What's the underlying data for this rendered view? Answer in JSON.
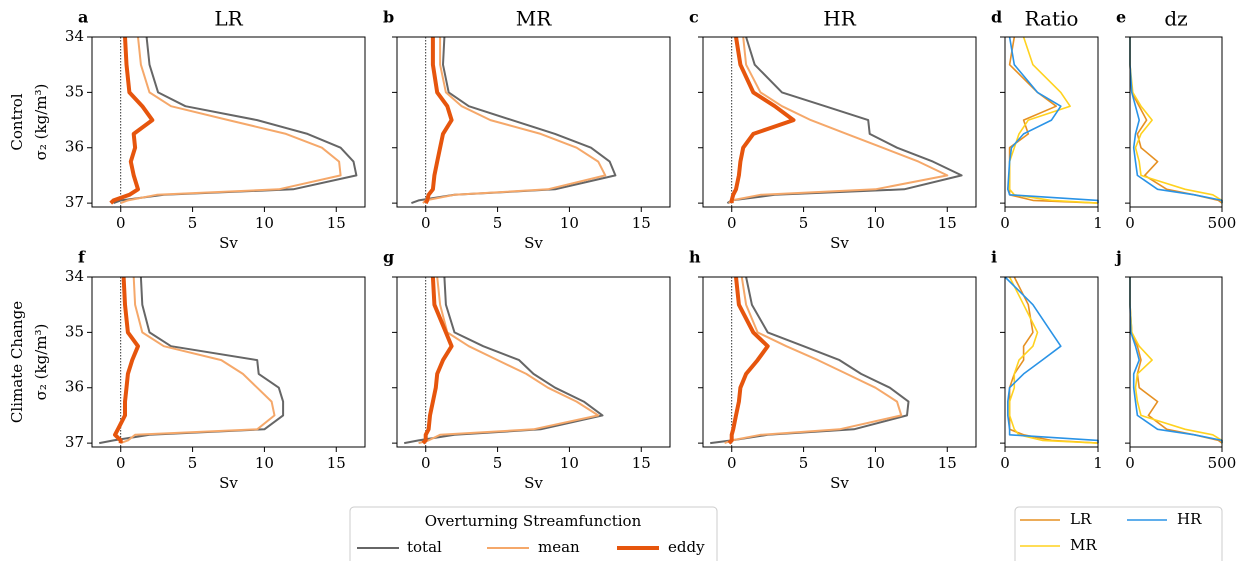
{
  "chart_data": [
    {
      "type": "line",
      "panel_label": "a",
      "title": "LR",
      "row_label": "Control",
      "ylabel": "σ₂ (kg/m³)",
      "xlabel": "Sv",
      "legend_title": "Overturning Streamfunction",
      "xlim": [
        -2,
        17
      ],
      "xticks": [
        0,
        5,
        10,
        15
      ],
      "ylim": [
        34,
        37.07
      ],
      "yticks": [
        34,
        35,
        36,
        37
      ],
      "y_inverted": true,
      "ytick_labels": true,
      "zero_line": true,
      "y": [
        34,
        34.5,
        35,
        35.25,
        35.5,
        35.75,
        36,
        36.25,
        36.5,
        36.75,
        36.85,
        36.95,
        37
      ],
      "series": [
        {
          "name": "total",
          "color": "#666666",
          "linewidth": 2,
          "values": [
            1.8,
            2.0,
            2.6,
            4.5,
            9.5,
            13.0,
            15.3,
            16.2,
            16.4,
            12.0,
            3.0,
            0.0,
            -0.5
          ]
        },
        {
          "name": "mean",
          "color": "#f5a86a",
          "linewidth": 2,
          "values": [
            1.2,
            1.4,
            2.0,
            3.5,
            7.5,
            11.5,
            14.0,
            15.2,
            15.3,
            11.0,
            2.5,
            0.5,
            0.0
          ]
        },
        {
          "name": "eddy",
          "color": "#e6550d",
          "linewidth": 4,
          "values": [
            0.3,
            0.4,
            0.6,
            1.5,
            2.2,
            0.9,
            1.0,
            0.7,
            0.9,
            1.2,
            0.6,
            -0.5,
            -0.7
          ]
        }
      ]
    },
    {
      "type": "line",
      "panel_label": "b",
      "title": "MR",
      "xlabel": "Sv",
      "xlim": [
        -2,
        17
      ],
      "xticks": [
        0,
        5,
        10,
        15
      ],
      "ylim": [
        34,
        37.07
      ],
      "yticks": [
        34,
        35,
        36,
        37
      ],
      "y_inverted": true,
      "ytick_labels": false,
      "zero_line": true,
      "y": [
        34,
        34.5,
        35,
        35.25,
        35.5,
        35.75,
        36,
        36.25,
        36.5,
        36.75,
        36.85,
        36.95,
        37
      ],
      "series": [
        {
          "color": "#666666",
          "linewidth": 2,
          "values": [
            1.3,
            1.2,
            1.6,
            3.0,
            6.0,
            9.0,
            11.5,
            12.8,
            13.2,
            9.0,
            2.0,
            -0.5,
            -1.0
          ]
        },
        {
          "color": "#f5a86a",
          "linewidth": 2,
          "values": [
            1.0,
            1.0,
            1.4,
            2.5,
            4.5,
            8.0,
            10.5,
            12.0,
            12.5,
            8.5,
            2.0,
            0.0,
            -0.2
          ]
        },
        {
          "color": "#e6550d",
          "linewidth": 4,
          "values": [
            0.5,
            0.5,
            0.8,
            1.5,
            1.8,
            1.2,
            1.0,
            0.8,
            0.6,
            0.5,
            0.2,
            0.1,
            0.0
          ]
        }
      ]
    },
    {
      "type": "line",
      "panel_label": "c",
      "title": "HR",
      "xlabel": "Sv",
      "xlim": [
        -2,
        17
      ],
      "xticks": [
        0,
        5,
        10,
        15
      ],
      "ylim": [
        34,
        37.07
      ],
      "yticks": [
        34,
        35,
        36,
        37
      ],
      "y_inverted": true,
      "ytick_labels": false,
      "zero_line": true,
      "y": [
        34,
        34.5,
        35,
        35.25,
        35.5,
        35.75,
        36,
        36.25,
        36.5,
        36.75,
        36.85,
        36.95,
        37
      ],
      "series": [
        {
          "color": "#666666",
          "linewidth": 2,
          "values": [
            1.0,
            1.6,
            3.5,
            6.5,
            9.5,
            9.6,
            11.5,
            14.0,
            16.0,
            12.0,
            3.0,
            0.0,
            -0.3
          ]
        },
        {
          "color": "#f5a86a",
          "linewidth": 2,
          "values": [
            0.8,
            1.0,
            2.0,
            3.5,
            5.5,
            8.0,
            10.5,
            13.0,
            15.0,
            10.0,
            2.0,
            0.0,
            -0.2
          ]
        },
        {
          "color": "#e6550d",
          "linewidth": 4,
          "values": [
            0.3,
            0.6,
            1.5,
            3.0,
            4.3,
            1.5,
            0.8,
            0.6,
            0.5,
            0.3,
            0.1,
            0.0,
            0.0
          ]
        }
      ]
    },
    {
      "type": "line",
      "panel_label": "d",
      "title": "Ratio",
      "xlim": [
        0,
        1
      ],
      "xticks": [
        0,
        1
      ],
      "ylim": [
        34,
        37.07
      ],
      "yticks": [
        34,
        35,
        36,
        37
      ],
      "y_inverted": true,
      "ytick_labels": false,
      "y": [
        34,
        34.5,
        35,
        35.25,
        35.5,
        35.75,
        36,
        36.25,
        36.5,
        36.75,
        36.85,
        36.95,
        37
      ],
      "series": [
        {
          "name": "LR",
          "color": "#e69022",
          "linewidth": 1.6,
          "values": [
            0.1,
            0.05,
            0.35,
            0.55,
            0.2,
            0.25,
            0.05,
            0.05,
            0.05,
            0.05,
            0.05,
            0.3,
            1.0
          ]
        },
        {
          "name": "MR",
          "color": "#ffd21f",
          "linewidth": 1.6,
          "values": [
            0.2,
            0.3,
            0.6,
            0.7,
            0.25,
            0.15,
            0.1,
            0.05,
            0.05,
            0.05,
            0.1,
            0.5,
            1.0
          ]
        },
        {
          "name": "HR",
          "color": "#2a93e6",
          "linewidth": 1.6,
          "values": [
            0.05,
            0.1,
            0.35,
            0.6,
            0.5,
            0.2,
            0.07,
            0.05,
            0.04,
            0.03,
            0.05,
            1.0,
            1.0
          ]
        }
      ]
    },
    {
      "type": "line",
      "panel_label": "e",
      "title": "dz",
      "xlim": [
        0,
        500
      ],
      "xticks": [
        0,
        500
      ],
      "ylim": [
        34,
        37.07
      ],
      "yticks": [
        34,
        35,
        36,
        37
      ],
      "y_inverted": true,
      "ytick_labels": false,
      "y": [
        34,
        34.5,
        35,
        35.25,
        35.5,
        35.75,
        36,
        36.25,
        36.5,
        36.75,
        36.85,
        36.95,
        37
      ],
      "series": [
        {
          "color": "#e69022",
          "linewidth": 1.6,
          "values": [
            0,
            0,
            10,
            50,
            90,
            40,
            60,
            150,
            80,
            200,
            350,
            480,
            500
          ]
        },
        {
          "color": "#ffd21f",
          "linewidth": 1.6,
          "values": [
            0,
            0,
            15,
            60,
            120,
            60,
            30,
            50,
            60,
            300,
            450,
            500,
            500
          ]
        },
        {
          "color": "#2a93e6",
          "linewidth": 1.6,
          "values": [
            0,
            0,
            10,
            30,
            50,
            30,
            20,
            30,
            40,
            150,
            350,
            500,
            500
          ]
        }
      ]
    },
    {
      "type": "line",
      "panel_label": "f",
      "row_label": "Climate Change",
      "ylabel": "σ₂ (kg/m³)",
      "xlabel": "Sv",
      "xlim": [
        -2,
        17
      ],
      "xticks": [
        0,
        5,
        10,
        15
      ],
      "ylim": [
        34,
        37.07
      ],
      "yticks": [
        34,
        35,
        36,
        37
      ],
      "y_inverted": true,
      "ytick_labels": true,
      "zero_line": true,
      "y": [
        34,
        34.5,
        35,
        35.25,
        35.5,
        35.75,
        36,
        36.25,
        36.5,
        36.75,
        36.85,
        36.95,
        37
      ],
      "series": [
        {
          "color": "#666666",
          "linewidth": 2,
          "values": [
            1.4,
            1.5,
            2.0,
            3.5,
            9.5,
            9.6,
            11.0,
            11.3,
            11.3,
            10.0,
            2.0,
            -0.5,
            -1.5
          ]
        },
        {
          "color": "#f5a86a",
          "linewidth": 2,
          "values": [
            0.9,
            1.0,
            1.5,
            3.0,
            7.0,
            8.5,
            9.5,
            10.5,
            10.7,
            9.5,
            1.0,
            0.5,
            0.0
          ]
        },
        {
          "color": "#e6550d",
          "linewidth": 4,
          "values": [
            0.2,
            0.3,
            0.5,
            1.2,
            0.8,
            0.5,
            0.4,
            0.3,
            0.3,
            -0.2,
            -0.4,
            0.0,
            0.0
          ]
        }
      ]
    },
    {
      "type": "line",
      "panel_label": "g",
      "xlabel": "Sv",
      "xlim": [
        -2,
        17
      ],
      "xticks": [
        0,
        5,
        10,
        15
      ],
      "ylim": [
        34,
        37.07
      ],
      "yticks": [
        34,
        35,
        36,
        37
      ],
      "y_inverted": true,
      "ytick_labels": false,
      "zero_line": true,
      "y": [
        34,
        34.5,
        35,
        35.25,
        35.5,
        35.75,
        36,
        36.25,
        36.5,
        36.75,
        36.85,
        36.95,
        37
      ],
      "series": [
        {
          "color": "#666666",
          "linewidth": 2,
          "values": [
            1.3,
            1.4,
            2.0,
            4.0,
            6.5,
            7.5,
            9.0,
            11.0,
            12.3,
            8.0,
            2.0,
            -0.5,
            -1.5
          ]
        },
        {
          "color": "#f5a86a",
          "linewidth": 2,
          "values": [
            0.8,
            1.0,
            1.5,
            3.0,
            5.0,
            7.0,
            8.5,
            10.5,
            12.0,
            7.5,
            1.0,
            0.2,
            -0.5
          ]
        },
        {
          "color": "#e6550d",
          "linewidth": 4,
          "values": [
            0.5,
            0.6,
            1.4,
            1.8,
            1.2,
            0.8,
            0.7,
            0.5,
            0.3,
            0.2,
            0.0,
            0.0,
            -0.2
          ]
        }
      ]
    },
    {
      "type": "line",
      "panel_label": "h",
      "xlabel": "Sv",
      "xlim": [
        -2,
        17
      ],
      "xticks": [
        0,
        5,
        10,
        15
      ],
      "ylim": [
        34,
        37.07
      ],
      "yticks": [
        34,
        35,
        36,
        37
      ],
      "y_inverted": true,
      "ytick_labels": false,
      "zero_line": true,
      "y": [
        34,
        34.5,
        35,
        35.25,
        35.5,
        35.75,
        36,
        36.25,
        36.5,
        36.75,
        36.85,
        36.95,
        37
      ],
      "series": [
        {
          "color": "#666666",
          "linewidth": 2,
          "values": [
            1.0,
            1.4,
            2.5,
            5.0,
            7.5,
            9.0,
            11.0,
            12.3,
            12.2,
            8.5,
            2.5,
            0.0,
            -1.5
          ]
        },
        {
          "color": "#f5a86a",
          "linewidth": 2,
          "values": [
            0.7,
            1.0,
            1.8,
            3.8,
            6.0,
            8.0,
            10.0,
            11.5,
            11.8,
            7.5,
            2.0,
            0.0,
            -0.5
          ]
        },
        {
          "color": "#e6550d",
          "linewidth": 4,
          "values": [
            0.3,
            0.5,
            1.5,
            2.5,
            1.8,
            1.0,
            0.6,
            0.5,
            0.3,
            0.1,
            0.0,
            0.0,
            -0.2
          ]
        }
      ]
    },
    {
      "type": "line",
      "panel_label": "i",
      "xlim": [
        0,
        1
      ],
      "xticks": [
        0,
        1
      ],
      "ylim": [
        34,
        37.07
      ],
      "yticks": [
        34,
        35,
        36,
        37
      ],
      "y_inverted": true,
      "ytick_labels": false,
      "y": [
        34,
        34.5,
        35,
        35.25,
        35.5,
        35.75,
        36,
        36.25,
        36.5,
        36.75,
        36.85,
        36.95,
        37
      ],
      "series": [
        {
          "color": "#e69022",
          "linewidth": 1.6,
          "values": [
            0.1,
            0.25,
            0.3,
            0.2,
            0.2,
            0.1,
            0.05,
            0.05,
            0.05,
            0.05,
            0.2,
            0.5,
            1.0
          ]
        },
        {
          "color": "#ffd21f",
          "linewidth": 1.6,
          "values": [
            0.05,
            0.2,
            0.35,
            0.3,
            0.15,
            0.1,
            0.1,
            0.05,
            0.05,
            0.1,
            0.15,
            0.4,
            1.0
          ]
        },
        {
          "color": "#2a93e6",
          "linewidth": 1.6,
          "values": [
            0.0,
            0.3,
            0.5,
            0.6,
            0.4,
            0.2,
            0.05,
            0.03,
            0.03,
            0.05,
            0.05,
            1.0,
            1.0
          ]
        }
      ]
    },
    {
      "type": "line",
      "panel_label": "j",
      "xlim": [
        0,
        500
      ],
      "xticks": [
        0,
        500
      ],
      "ylim": [
        34,
        37.07
      ],
      "yticks": [
        34,
        35,
        36,
        37
      ],
      "y_inverted": true,
      "ytick_labels": false,
      "y": [
        34,
        34.5,
        35,
        35.25,
        35.5,
        35.75,
        36,
        36.25,
        36.5,
        36.75,
        36.85,
        36.95,
        37
      ],
      "series": [
        {
          "color": "#e69022",
          "linewidth": 1.6,
          "values": [
            0,
            0,
            10,
            40,
            60,
            40,
            50,
            150,
            100,
            200,
            350,
            480,
            500
          ]
        },
        {
          "color": "#ffd21f",
          "linewidth": 1.6,
          "values": [
            0,
            0,
            10,
            50,
            120,
            40,
            30,
            40,
            60,
            300,
            450,
            500,
            500
          ]
        },
        {
          "color": "#2a93e6",
          "linewidth": 1.6,
          "values": [
            0,
            0,
            5,
            30,
            50,
            20,
            20,
            30,
            40,
            150,
            350,
            500,
            500
          ]
        }
      ]
    }
  ]
}
